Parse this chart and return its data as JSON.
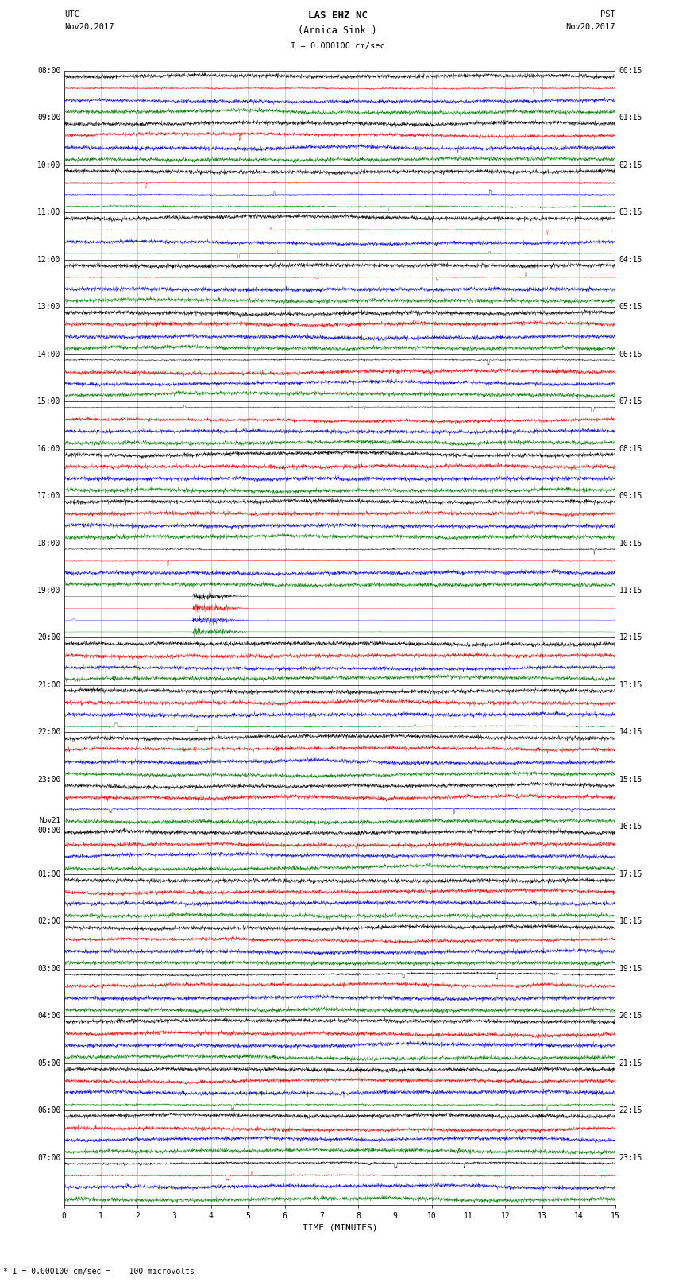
{
  "title_line1": "LAS EHZ NC",
  "title_line2": "(Arnica Sink )",
  "scale_label": "I = 0.000100 cm/sec",
  "left_header_line1": "UTC",
  "left_header_line2": "Nov20,2017",
  "right_header_line1": "PST",
  "right_header_line2": "Nov20,2017",
  "bottom_label": "TIME (MINUTES)",
  "bottom_note": "* I = 0.000100 cm/sec =    100 microvolts",
  "xlabel_ticks": [
    0,
    1,
    2,
    3,
    4,
    5,
    6,
    7,
    8,
    9,
    10,
    11,
    12,
    13,
    14,
    15
  ],
  "left_times": [
    "08:00",
    "09:00",
    "10:00",
    "11:00",
    "12:00",
    "13:00",
    "14:00",
    "15:00",
    "16:00",
    "17:00",
    "18:00",
    "19:00",
    "20:00",
    "21:00",
    "22:00",
    "23:00",
    "Nov21\n00:00",
    "01:00",
    "02:00",
    "03:00",
    "04:00",
    "05:00",
    "06:00",
    "07:00"
  ],
  "right_times": [
    "00:15",
    "01:15",
    "02:15",
    "03:15",
    "04:15",
    "05:15",
    "06:15",
    "07:15",
    "08:15",
    "09:15",
    "10:15",
    "11:15",
    "12:15",
    "13:15",
    "14:15",
    "15:15",
    "16:15",
    "17:15",
    "18:15",
    "19:15",
    "20:15",
    "21:15",
    "22:15",
    "23:15"
  ],
  "n_groups": 24,
  "n_traces_per_group": 4,
  "row_colors": [
    "black",
    "red",
    "blue",
    "green"
  ],
  "bg_color": "white",
  "grid_color": "#aaaaaa",
  "fig_width": 8.5,
  "fig_height": 16.13,
  "dpi": 100,
  "noise_scale": 0.012,
  "spike_prob": 0.18,
  "seed": 42,
  "event_group": 11,
  "event_trace": 1,
  "event_minute": 3.5,
  "event_duration": 1.5,
  "event_scale": 0.35
}
